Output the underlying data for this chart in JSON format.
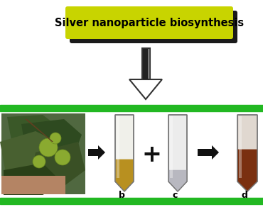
{
  "title": "Silver nanoparticle biosynthesis",
  "title_box_color": "#c8d400",
  "title_box_shadow_color": "#1a1a1a",
  "title_text_color": "#000000",
  "title_fontsize": 10.5,
  "bg_color": "#ffffff",
  "green_stripe_color": "#22b822",
  "arrow_color": "#111111",
  "plus_color": "#111111",
  "label_b": "b",
  "label_c": "c",
  "label_d": "d",
  "tube_b_top_color": "#f2f2ec",
  "tube_b_liquid_color": "#b89020",
  "tube_c_top_color": "#e8e8e8",
  "tube_c_liquid_color": "#a8a8b0",
  "tube_d_liquid_color": "#7a3010",
  "tube_d_top_color": "#ddd8d0"
}
